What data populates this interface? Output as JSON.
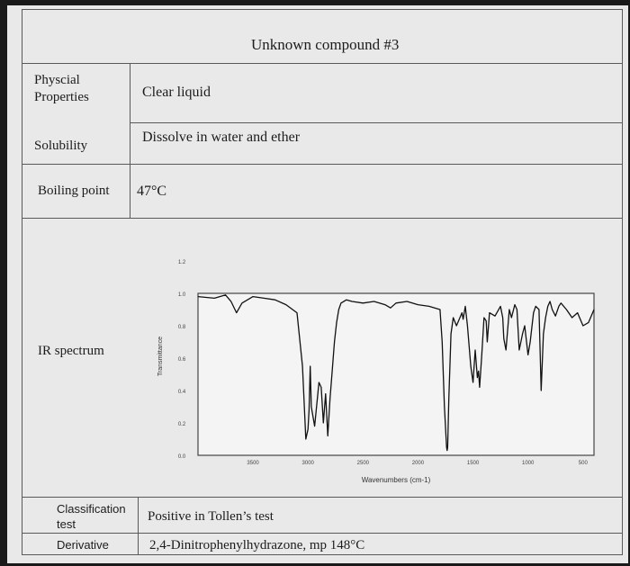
{
  "title": "Unknown compound #3",
  "rows": {
    "physical": {
      "label": "Physcial Properties",
      "label_line1": "Physcial",
      "label_line2": "Properties",
      "value": "Clear liquid"
    },
    "solubility": {
      "label": "Solubility",
      "value": "Dissolve in water and ether"
    },
    "boiling": {
      "label": "Boiling point",
      "value": "47°C"
    },
    "ir": {
      "label": "IR spectrum"
    },
    "classification": {
      "label": "Classification test",
      "label_line1": "Classification",
      "label_line2": "test",
      "value": "Positive in Tollen’s test"
    },
    "derivative": {
      "label": "Derivative",
      "value": "2,4-Dinitrophenylhydrazone, mp  148°C"
    }
  },
  "chart_data": {
    "type": "line",
    "title": "",
    "xlabel": "Wavenumbers (cm-1)",
    "ylabel": "Transmittance",
    "xlim": [
      4000,
      400
    ],
    "ylim": [
      0,
      1.2
    ],
    "xticks": [
      3500,
      3000,
      2500,
      2000,
      1500,
      1000,
      500
    ],
    "yticks": [
      0.0,
      0.2,
      0.4,
      0.6,
      0.8,
      1.0,
      1.2
    ],
    "ytick_labels": [
      "0.0",
      "0.2",
      "0.4",
      "0.6",
      "0.8",
      "1.0",
      "1.2"
    ],
    "series": [
      {
        "x": [
          4000,
          3850,
          3750,
          3700,
          3650,
          3600,
          3500,
          3400,
          3300,
          3200,
          3100,
          3050,
          3020,
          3000,
          2990,
          2980,
          2970,
          2940,
          2900,
          2880,
          2860,
          2840,
          2820,
          2800,
          2780,
          2760,
          2740,
          2720,
          2700,
          2650,
          2600,
          2500,
          2400,
          2300,
          2250,
          2200,
          2100,
          2000,
          1900,
          1800,
          1780,
          1760,
          1740,
          1735,
          1730,
          1720,
          1700,
          1680,
          1650,
          1600,
          1590,
          1570,
          1550,
          1520,
          1500,
          1480,
          1460,
          1450,
          1440,
          1420,
          1400,
          1380,
          1370,
          1350,
          1300,
          1250,
          1230,
          1220,
          1200,
          1170,
          1150,
          1120,
          1100,
          1080,
          1050,
          1030,
          1000,
          980,
          950,
          930,
          900,
          880,
          860,
          840,
          820,
          800,
          780,
          750,
          720,
          700,
          650,
          600,
          550,
          500,
          450,
          400
        ],
        "y": [
          0.98,
          0.97,
          0.99,
          0.95,
          0.88,
          0.94,
          0.98,
          0.97,
          0.96,
          0.93,
          0.88,
          0.55,
          0.1,
          0.16,
          0.28,
          0.55,
          0.3,
          0.18,
          0.45,
          0.42,
          0.2,
          0.38,
          0.12,
          0.35,
          0.52,
          0.7,
          0.82,
          0.9,
          0.94,
          0.96,
          0.95,
          0.94,
          0.95,
          0.93,
          0.91,
          0.94,
          0.95,
          0.93,
          0.92,
          0.9,
          0.7,
          0.3,
          0.05,
          0.03,
          0.05,
          0.35,
          0.75,
          0.85,
          0.8,
          0.88,
          0.84,
          0.92,
          0.8,
          0.55,
          0.45,
          0.65,
          0.48,
          0.52,
          0.42,
          0.62,
          0.85,
          0.83,
          0.7,
          0.88,
          0.86,
          0.92,
          0.85,
          0.72,
          0.65,
          0.9,
          0.85,
          0.93,
          0.9,
          0.65,
          0.75,
          0.8,
          0.62,
          0.7,
          0.88,
          0.92,
          0.9,
          0.4,
          0.75,
          0.85,
          0.92,
          0.95,
          0.9,
          0.86,
          0.92,
          0.94,
          0.9,
          0.85,
          0.88,
          0.8,
          0.82,
          0.9
        ]
      }
    ]
  }
}
